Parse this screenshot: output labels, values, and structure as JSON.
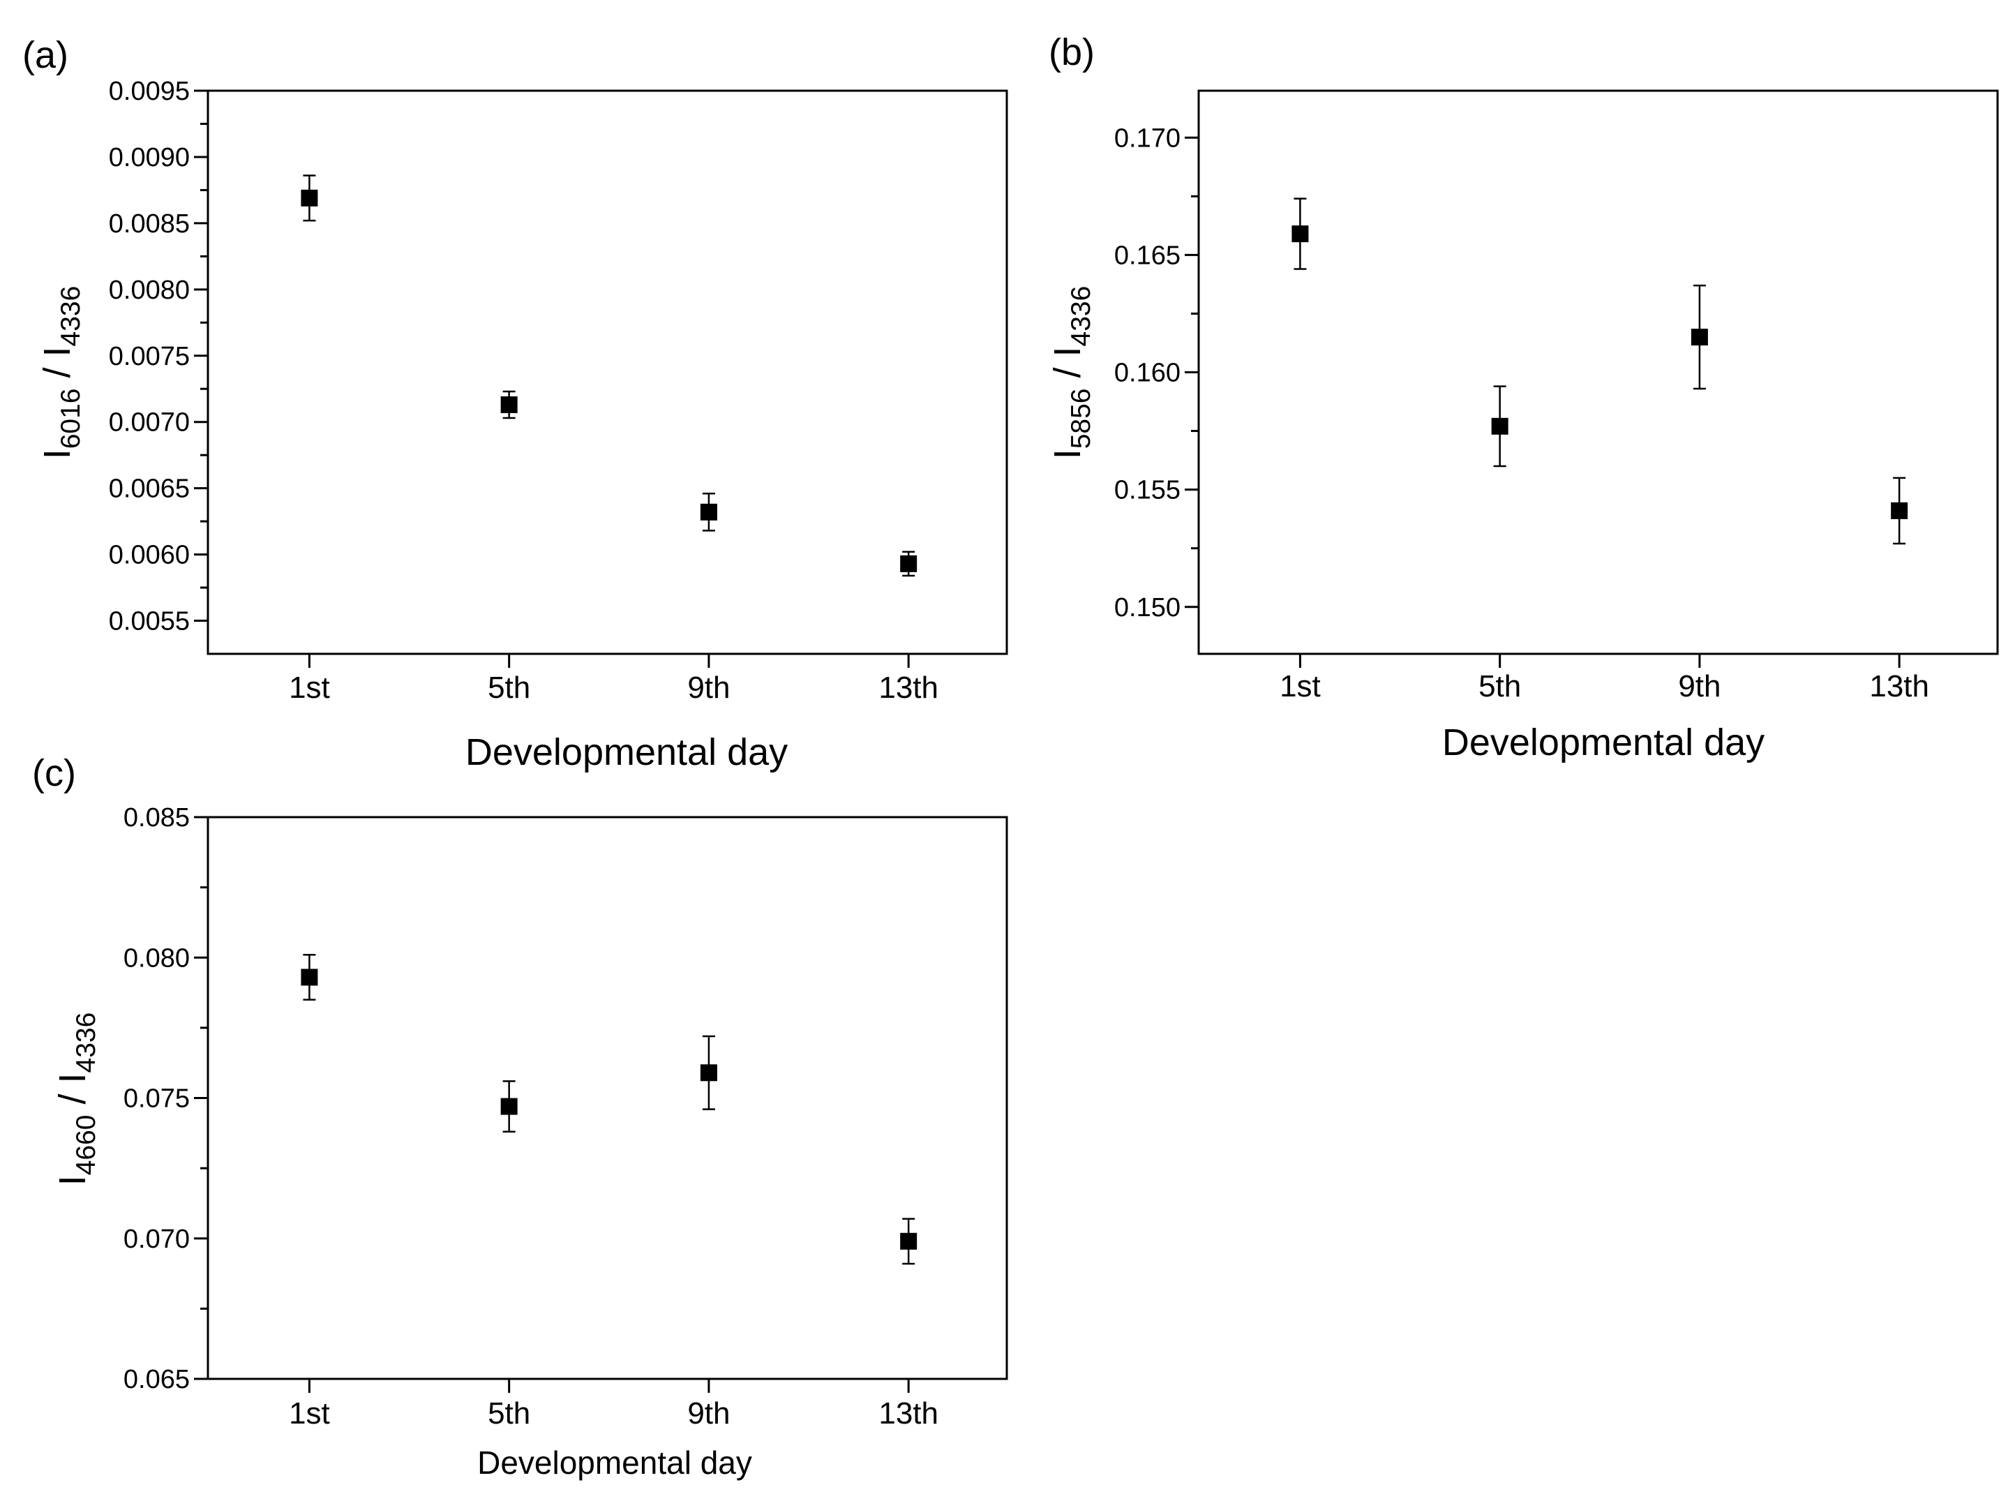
{
  "figure": {
    "panels": [
      "(a)",
      "(b)",
      "(c)"
    ]
  },
  "chart_data": [
    {
      "panel": "(a)",
      "type": "scatter",
      "title": "",
      "xlabel": "Developmental day",
      "ylabel": {
        "base": "I",
        "num_sub": "6016",
        "sep": " / ",
        "den_base": "I",
        "den_sub": "4336"
      },
      "categories": [
        "1st",
        "5th",
        "9th",
        "13th"
      ],
      "series": [
        {
          "name": "I6016/I4336",
          "values": [
            0.00869,
            0.00713,
            0.00632,
            0.00593
          ],
          "errors": [
            0.00017,
            0.0001,
            0.00014,
            9e-05
          ]
        }
      ],
      "ylim": [
        0.00525,
        0.0095
      ],
      "yticks": [
        0.0055,
        0.006,
        0.0065,
        0.007,
        0.0075,
        0.008,
        0.0085,
        0.009,
        0.0095
      ],
      "ytick_labels": [
        "0.0055",
        "0.0060",
        "0.0065",
        "0.0070",
        "0.0075",
        "0.0080",
        "0.0085",
        "0.0090",
        "0.0095"
      ],
      "marker": "square",
      "color": "#000000",
      "grid": false,
      "legend": "none"
    },
    {
      "panel": "(b)",
      "type": "scatter",
      "title": "",
      "xlabel": "Developmental day",
      "ylabel": {
        "base": "I",
        "num_sub": "5856",
        "sep": " / ",
        "den_base": "I",
        "den_sub": "4336"
      },
      "categories": [
        "1st",
        "5th",
        "9th",
        "13th"
      ],
      "series": [
        {
          "name": "I5856/I4336",
          "values": [
            0.1659,
            0.1577,
            0.1615,
            0.1541
          ],
          "errors": [
            0.0015,
            0.0017,
            0.0022,
            0.0014
          ]
        }
      ],
      "ylim": [
        0.148,
        0.172
      ],
      "yticks": [
        0.15,
        0.155,
        0.16,
        0.165,
        0.17
      ],
      "ytick_labels": [
        "0.150",
        "0.155",
        "0.160",
        "0.165",
        "0.170"
      ],
      "marker": "square",
      "color": "#000000",
      "grid": false,
      "legend": "none"
    },
    {
      "panel": "(c)",
      "type": "scatter",
      "title": "",
      "xlabel": "Developmental day",
      "ylabel": {
        "base": "I",
        "num_sub": "4660",
        "sep": " / ",
        "den_base": "I",
        "den_sub": "4336"
      },
      "categories": [
        "1st",
        "5th",
        "9th",
        "13th"
      ],
      "series": [
        {
          "name": "I4660/I4336",
          "values": [
            0.0793,
            0.0747,
            0.0759,
            0.0699
          ],
          "errors": [
            0.0008,
            0.0009,
            0.0013,
            0.0008
          ]
        }
      ],
      "ylim": [
        0.065,
        0.085
      ],
      "yticks": [
        0.065,
        0.07,
        0.075,
        0.08,
        0.085
      ],
      "ytick_labels": [
        "0.065",
        "0.070",
        "0.075",
        "0.080",
        "0.085"
      ],
      "marker": "square",
      "color": "#000000",
      "grid": false,
      "legend": "none"
    }
  ]
}
